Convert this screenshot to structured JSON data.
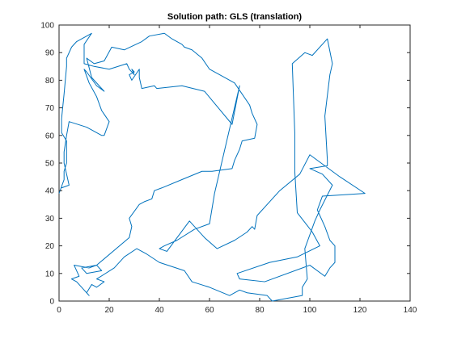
{
  "chart_data": {
    "type": "line",
    "title": "Solution path: GLS (translation)",
    "xlabel": "",
    "ylabel": "",
    "xlim": [
      0,
      140
    ],
    "ylim": [
      0,
      100
    ],
    "xticks": [
      0,
      20,
      40,
      60,
      80,
      100,
      120,
      140
    ],
    "yticks": [
      0,
      10,
      20,
      30,
      40,
      50,
      60,
      70,
      80,
      90,
      100
    ],
    "xtick_labels": [
      "0",
      "20",
      "40",
      "60",
      "80",
      "100",
      "120",
      "140"
    ],
    "ytick_labels": [
      "0",
      "10",
      "20",
      "30",
      "40",
      "50",
      "60",
      "70",
      "80",
      "90",
      "100"
    ],
    "grid": false,
    "legend": "none",
    "series": [
      {
        "color": "#0072BD",
        "x": [
          0,
          2,
          2,
          3,
          3,
          3,
          1,
          1,
          2,
          3,
          3,
          5,
          7,
          13,
          10,
          10,
          14,
          20,
          27,
          28,
          30,
          29,
          30,
          28,
          29,
          32,
          32,
          33,
          38,
          39,
          49,
          58,
          69,
          72,
          62,
          60,
          54,
          47,
          42,
          40,
          43,
          52,
          58,
          63,
          70,
          75,
          77,
          78,
          79,
          88,
          96,
          100,
          112,
          122,
          105,
          103,
          106,
          108,
          110,
          110,
          108,
          106,
          100,
          82,
          72,
          71,
          84,
          95,
          104,
          101,
          95,
          94,
          94,
          93,
          98,
          101,
          107,
          109,
          108,
          106,
          107,
          107,
          100,
          105,
          109,
          104,
          102,
          98,
          99,
          97,
          97,
          85,
          83,
          75,
          72,
          68,
          60,
          53,
          50,
          40,
          35,
          31,
          26,
          22,
          15,
          18,
          15,
          13,
          11,
          12,
          7,
          5,
          8,
          6,
          12,
          15,
          17,
          11,
          9,
          15,
          15,
          28,
          29,
          28,
          32,
          34,
          37,
          38,
          41,
          49,
          57,
          61,
          69,
          70,
          72,
          73,
          78,
          79,
          77,
          76,
          70,
          66,
          60,
          57,
          53,
          50,
          49,
          45,
          42,
          36,
          33,
          26,
          21,
          18,
          14,
          11,
          13,
          18,
          15,
          11,
          10,
          12,
          15,
          17,
          20,
          18,
          17,
          11,
          4,
          3,
          2,
          2,
          4,
          1
        ],
        "y": [
          39,
          44,
          47,
          50,
          55,
          58,
          61,
          66,
          75,
          85,
          88,
          92,
          94,
          97,
          93,
          86,
          85,
          84,
          86,
          84,
          82,
          84,
          83,
          82,
          80,
          84,
          81,
          77,
          78,
          77,
          78,
          76,
          64,
          78,
          39,
          28,
          26,
          22,
          20,
          19,
          18,
          29,
          23,
          19,
          22,
          25,
          27,
          26,
          31,
          40,
          46,
          53,
          45,
          39,
          38,
          33,
          27,
          22,
          20,
          14,
          12,
          9,
          13,
          7,
          8,
          10,
          14,
          16,
          20,
          25,
          32,
          47,
          61,
          86,
          90,
          89,
          95,
          86,
          82,
          67,
          51,
          49,
          48,
          46,
          42,
          33,
          29,
          19,
          8,
          5,
          2,
          0,
          2,
          3,
          4,
          2,
          5,
          7,
          11,
          14,
          17,
          19,
          16,
          12,
          8,
          7,
          5,
          6,
          3,
          2,
          7,
          8,
          9,
          13,
          12,
          13,
          11,
          10,
          12,
          13,
          13,
          23,
          27,
          30,
          35,
          36,
          37,
          40,
          41,
          44,
          47,
          47,
          48,
          51,
          55,
          58,
          59,
          64,
          68,
          71,
          79,
          81,
          84,
          88,
          91,
          92,
          93,
          95,
          97,
          96,
          94,
          91,
          92,
          87,
          86,
          88,
          81,
          76,
          78,
          83,
          84,
          79,
          74,
          69,
          65,
          60,
          60,
          63,
          65,
          60,
          54,
          50,
          42,
          41
        ]
      }
    ]
  }
}
